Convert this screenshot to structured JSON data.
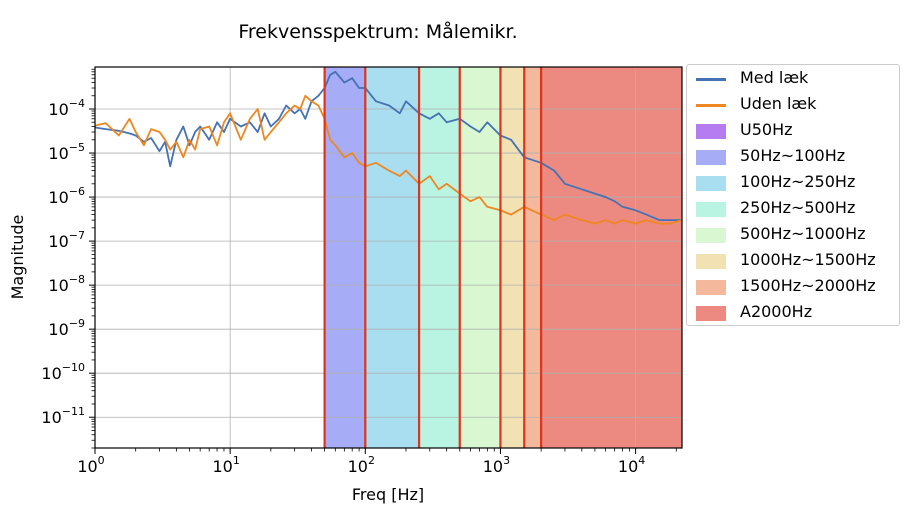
{
  "chart_data": {
    "type": "line",
    "title": "Frekvensspektrum: Målemikr.",
    "xlabel": "Freq [Hz]",
    "ylabel": "Magnitude",
    "xscale": "log",
    "yscale": "log",
    "xlim": [
      1,
      22050
    ],
    "ylim": [
      2e-12,
      0.0009
    ],
    "grid": true,
    "legend_position": "outside right",
    "x_ticks": [
      {
        "value": 1,
        "base": "10",
        "exp": "0"
      },
      {
        "value": 10,
        "base": "10",
        "exp": "1"
      },
      {
        "value": 100,
        "base": "10",
        "exp": "2"
      },
      {
        "value": 1000,
        "base": "10",
        "exp": "3"
      },
      {
        "value": 10000,
        "base": "10",
        "exp": "4"
      }
    ],
    "y_ticks": [
      {
        "value": 1e-11,
        "base": "10",
        "exp": "−11"
      },
      {
        "value": 1e-10,
        "base": "10",
        "exp": "−10"
      },
      {
        "value": 1e-09,
        "base": "10",
        "exp": "−9"
      },
      {
        "value": 1e-08,
        "base": "10",
        "exp": "−8"
      },
      {
        "value": 1e-07,
        "base": "10",
        "exp": "−7"
      },
      {
        "value": 1e-06,
        "base": "10",
        "exp": "−6"
      },
      {
        "value": 1e-05,
        "base": "10",
        "exp": "−5"
      },
      {
        "value": 0.0001,
        "base": "10",
        "exp": "−4"
      }
    ],
    "series": [
      {
        "name": "Med læk",
        "color": "#4472b4",
        "x": [
          1,
          1.2,
          1.5,
          1.8,
          2,
          2.3,
          2.6,
          3,
          3.3,
          3.6,
          4,
          4.5,
          5,
          5.5,
          6,
          7,
          8,
          9,
          10,
          12,
          14,
          16,
          18,
          20,
          23,
          26,
          30,
          33,
          36,
          40,
          45,
          50,
          55,
          60,
          70,
          80,
          90,
          100,
          120,
          150,
          180,
          200,
          250,
          300,
          350,
          400,
          500,
          600,
          700,
          800,
          1000,
          1200,
          1500,
          2000,
          2500,
          3000,
          4000,
          5000,
          6000,
          7000,
          8000,
          10000,
          12000,
          15000,
          18000,
          22050
        ],
        "y": [
          3.8e-05,
          3.5e-05,
          3.2e-05,
          2.8e-05,
          2.5e-05,
          1.8e-05,
          2.2e-05,
          1.1e-05,
          1.8e-05,
          5e-06,
          2e-05,
          4e-05,
          1.5e-05,
          3e-05,
          4e-05,
          2e-05,
          5e-05,
          3e-05,
          6e-05,
          4e-05,
          5e-05,
          3e-05,
          8e-05,
          4e-05,
          6e-05,
          0.00012,
          8e-05,
          0.0001,
          6e-05,
          0.00015,
          0.0002,
          0.0003,
          0.0006,
          0.0007,
          0.0004,
          0.0005,
          0.0003,
          0.0003,
          0.00015,
          0.00012,
          8e-05,
          0.00015,
          8e-05,
          6e-05,
          8e-05,
          5e-05,
          6e-05,
          4e-05,
          3e-05,
          5e-05,
          2.5e-05,
          2e-05,
          8e-06,
          6e-06,
          4e-06,
          2e-06,
          1.5e-06,
          1.2e-06,
          1e-06,
          8e-07,
          6e-07,
          5e-07,
          4e-07,
          3e-07,
          3e-07,
          3e-07
        ]
      },
      {
        "name": "Uden læk",
        "color": "#ee8721",
        "x": [
          1,
          1.2,
          1.5,
          1.8,
          2,
          2.3,
          2.6,
          3,
          3.3,
          3.6,
          4,
          4.5,
          5,
          5.5,
          6,
          7,
          8,
          9,
          10,
          12,
          14,
          16,
          18,
          20,
          23,
          26,
          30,
          33,
          36,
          40,
          45,
          50,
          55,
          60,
          70,
          80,
          90,
          100,
          120,
          150,
          180,
          200,
          250,
          300,
          350,
          400,
          500,
          600,
          700,
          800,
          1000,
          1200,
          1500,
          2000,
          2500,
          3000,
          4000,
          5000,
          6000,
          7000,
          8000,
          10000,
          12000,
          15000,
          18000,
          22050
        ],
        "y": [
          4.2e-05,
          4.8e-05,
          2.5e-05,
          6e-05,
          3e-05,
          1.5e-05,
          3.5e-05,
          3e-05,
          2e-05,
          1.2e-05,
          1.8e-05,
          8e-06,
          2e-05,
          1.2e-05,
          3.5e-05,
          4e-05,
          1.5e-05,
          5e-05,
          8e-05,
          2e-05,
          6e-05,
          0.0001,
          2e-05,
          3e-05,
          5e-05,
          8e-05,
          0.00012,
          0.0001,
          0.0002,
          0.00015,
          0.00012,
          6e-05,
          2e-05,
          1.5e-05,
          8e-06,
          1e-05,
          6e-06,
          5e-06,
          6e-06,
          4e-06,
          3e-06,
          4e-06,
          2e-06,
          3e-06,
          1.5e-06,
          2e-06,
          1.2e-06,
          8e-07,
          1e-06,
          6e-07,
          5e-07,
          4e-07,
          6e-07,
          4e-07,
          3e-07,
          4e-07,
          3e-07,
          2.5e-07,
          3e-07,
          2.5e-07,
          3e-07,
          2.5e-07,
          3e-07,
          2.5e-07,
          2.5e-07,
          3e-07
        ]
      }
    ],
    "bands": [
      {
        "name": "U50Hz",
        "from": 1,
        "to": 50,
        "color": "#b57cf2",
        "show_fill": false
      },
      {
        "name": "50Hz~100Hz",
        "from": 50,
        "to": 100,
        "color": "#a6acf5",
        "show_fill": true
      },
      {
        "name": "100Hz~250Hz",
        "from": 100,
        "to": 250,
        "color": "#a9def0",
        "show_fill": true
      },
      {
        "name": "250Hz~500Hz",
        "from": 250,
        "to": 500,
        "color": "#b9f4e2",
        "show_fill": true
      },
      {
        "name": "500Hz~1000Hz",
        "from": 500,
        "to": 1000,
        "color": "#d9f8d2",
        "show_fill": true
      },
      {
        "name": "1000Hz~1500Hz",
        "from": 1000,
        "to": 1500,
        "color": "#f1e1b3",
        "show_fill": true
      },
      {
        "name": "1500Hz~2000Hz",
        "from": 1500,
        "to": 2000,
        "color": "#f4b99c",
        "show_fill": true
      },
      {
        "name": "A2000Hz",
        "from": 2000,
        "to": 22050,
        "color": "#ec8a82",
        "show_fill": true
      }
    ],
    "band_edges": [
      50,
      100,
      250,
      500,
      1000,
      1500,
      2000
    ],
    "band_edge_color": "#e0331a"
  }
}
